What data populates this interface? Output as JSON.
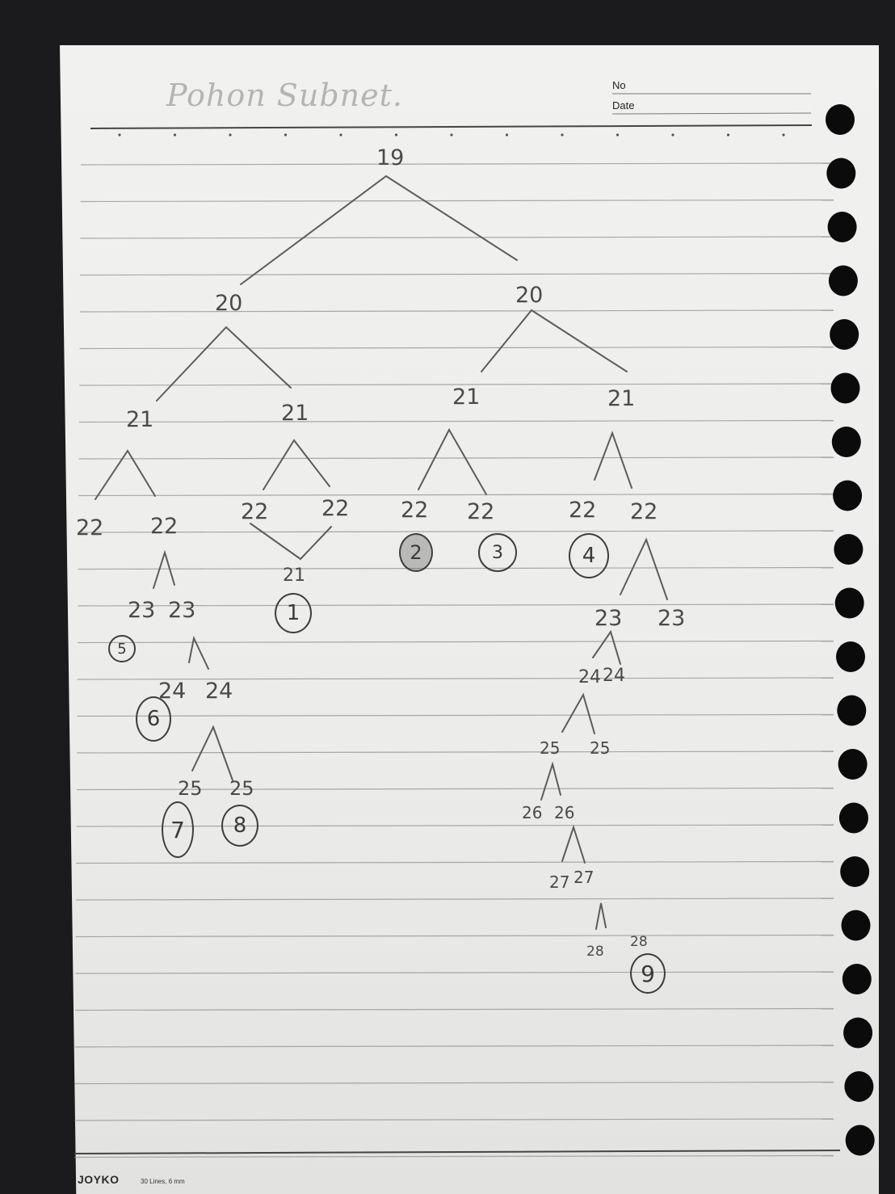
{
  "header": {
    "title": "Pohon Subnet.",
    "no_label": "No",
    "date_label": "Date"
  },
  "footer": {
    "brand": "JOYKO",
    "paper_spec": "30 Lines, 6 mm"
  },
  "tree": {
    "root": "19",
    "level1": [
      "20",
      "20"
    ],
    "level2": [
      "21",
      "21",
      "21",
      "21"
    ],
    "level3": [
      "22",
      "22",
      "22",
      "22",
      "22",
      "22",
      "22",
      "22"
    ],
    "under_b": "21",
    "branch_a2": [
      "23",
      "23"
    ],
    "branch_a2b": [
      "24",
      "24"
    ],
    "branch_a2b2": [
      "25",
      "25"
    ],
    "branch_d2": [
      "23",
      "23"
    ],
    "branch_d2a": [
      "24",
      "24"
    ],
    "branch_d2a1": [
      "25",
      "25"
    ],
    "branch_d2a1a": [
      "26",
      "26"
    ],
    "branch_d2a1a2": [
      "27",
      "27"
    ],
    "branch_d2a1a2a": [
      "28",
      "28"
    ]
  },
  "circled_numbers": [
    "1",
    "2",
    "3",
    "4",
    "5",
    "6",
    "7",
    "8",
    "9"
  ]
}
